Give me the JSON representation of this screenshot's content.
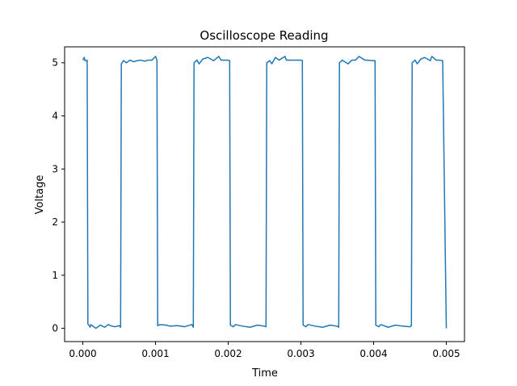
{
  "chart_data": {
    "type": "line",
    "title": "Oscilloscope Reading",
    "xlabel": "Time",
    "ylabel": "Voltage",
    "xlim": [
      -0.00025,
      0.00525
    ],
    "ylim": [
      -0.25,
      5.3
    ],
    "xticks": [
      0.0,
      0.001,
      0.002,
      0.003,
      0.004,
      0.005
    ],
    "xtick_labels": [
      "0.000",
      "0.001",
      "0.002",
      "0.003",
      "0.004",
      "0.005"
    ],
    "yticks": [
      0,
      1,
      2,
      3,
      4,
      5
    ],
    "ytick_labels": [
      "0",
      "1",
      "2",
      "3",
      "4",
      "5"
    ],
    "grid": false,
    "line_color": "#1f77b4",
    "series": [
      {
        "x": [
          0.0,
          2e-05,
          3e-05,
          5e-05,
          6e-05,
          7e-05,
          0.0001,
          0.00011,
          0.00013,
          0.00018,
          0.00024,
          0.0003,
          0.00035,
          0.0004,
          0.00045,
          0.0005,
          0.00052,
          0.00053,
          0.00056,
          0.0006,
          0.00065,
          0.0007,
          0.00075,
          0.0008,
          0.00085,
          0.0009,
          0.00095,
          0.001,
          0.00102,
          0.00103,
          0.00106,
          0.0001,
          0.00115,
          0.0012,
          0.0013,
          0.0014,
          0.0015,
          0.00152,
          0.00153,
          0.00157,
          0.0016,
          0.00165,
          0.00172,
          0.0018,
          0.00187,
          0.0019,
          0.00196,
          0.002,
          0.00202,
          0.00203,
          0.00207,
          0.0021,
          0.0022,
          0.0023,
          0.0024,
          0.0025,
          0.00252,
          0.00253,
          0.00257,
          0.0026,
          0.00265,
          0.0027,
          0.00278,
          0.0028,
          0.00287,
          0.0029,
          0.003,
          0.00302,
          0.00303,
          0.00307,
          0.0031,
          0.0032,
          0.0033,
          0.0034,
          0.0035,
          0.00352,
          0.00353,
          0.00357,
          0.0036,
          0.00365,
          0.0037,
          0.00375,
          0.0038,
          0.00388,
          0.0039,
          0.004,
          0.00402,
          0.00403,
          0.00407,
          0.0041,
          0.0042,
          0.0043,
          0.0044,
          0.0045,
          0.00452,
          0.00453,
          0.00457,
          0.0046,
          0.00465,
          0.0047,
          0.00478,
          0.0048,
          0.00486,
          0.0049,
          0.00495,
          0.005
        ],
        "y": [
          5.05,
          5.1,
          5.04,
          5.04,
          5.05,
          0.08,
          0.03,
          0.07,
          0.05,
          0.0,
          0.06,
          0.02,
          0.07,
          0.04,
          0.03,
          0.05,
          0.02,
          4.98,
          5.04,
          5.0,
          5.05,
          5.02,
          5.04,
          5.05,
          5.03,
          5.05,
          5.05,
          5.12,
          5.05,
          0.05,
          0.07,
          0.02,
          0.06,
          0.04,
          0.05,
          0.03,
          0.07,
          0.02,
          5.0,
          5.05,
          4.98,
          5.07,
          5.1,
          5.04,
          5.12,
          5.05,
          5.05,
          5.05,
          5.04,
          0.06,
          0.03,
          0.07,
          0.04,
          0.02,
          0.06,
          0.04,
          0.03,
          5.0,
          5.04,
          4.98,
          5.1,
          5.05,
          5.12,
          5.05,
          5.05,
          5.05,
          5.05,
          5.04,
          0.06,
          0.03,
          0.07,
          0.04,
          0.02,
          0.06,
          0.04,
          0.02,
          5.0,
          5.05,
          5.02,
          4.98,
          5.05,
          5.05,
          5.12,
          5.05,
          5.05,
          5.04,
          5.04,
          0.06,
          0.03,
          0.07,
          0.02,
          0.06,
          0.04,
          0.03,
          0.05,
          5.0,
          5.05,
          4.98,
          5.07,
          5.1,
          5.04,
          5.12,
          5.05,
          5.05,
          5.04,
          0.0
        ]
      }
    ]
  }
}
